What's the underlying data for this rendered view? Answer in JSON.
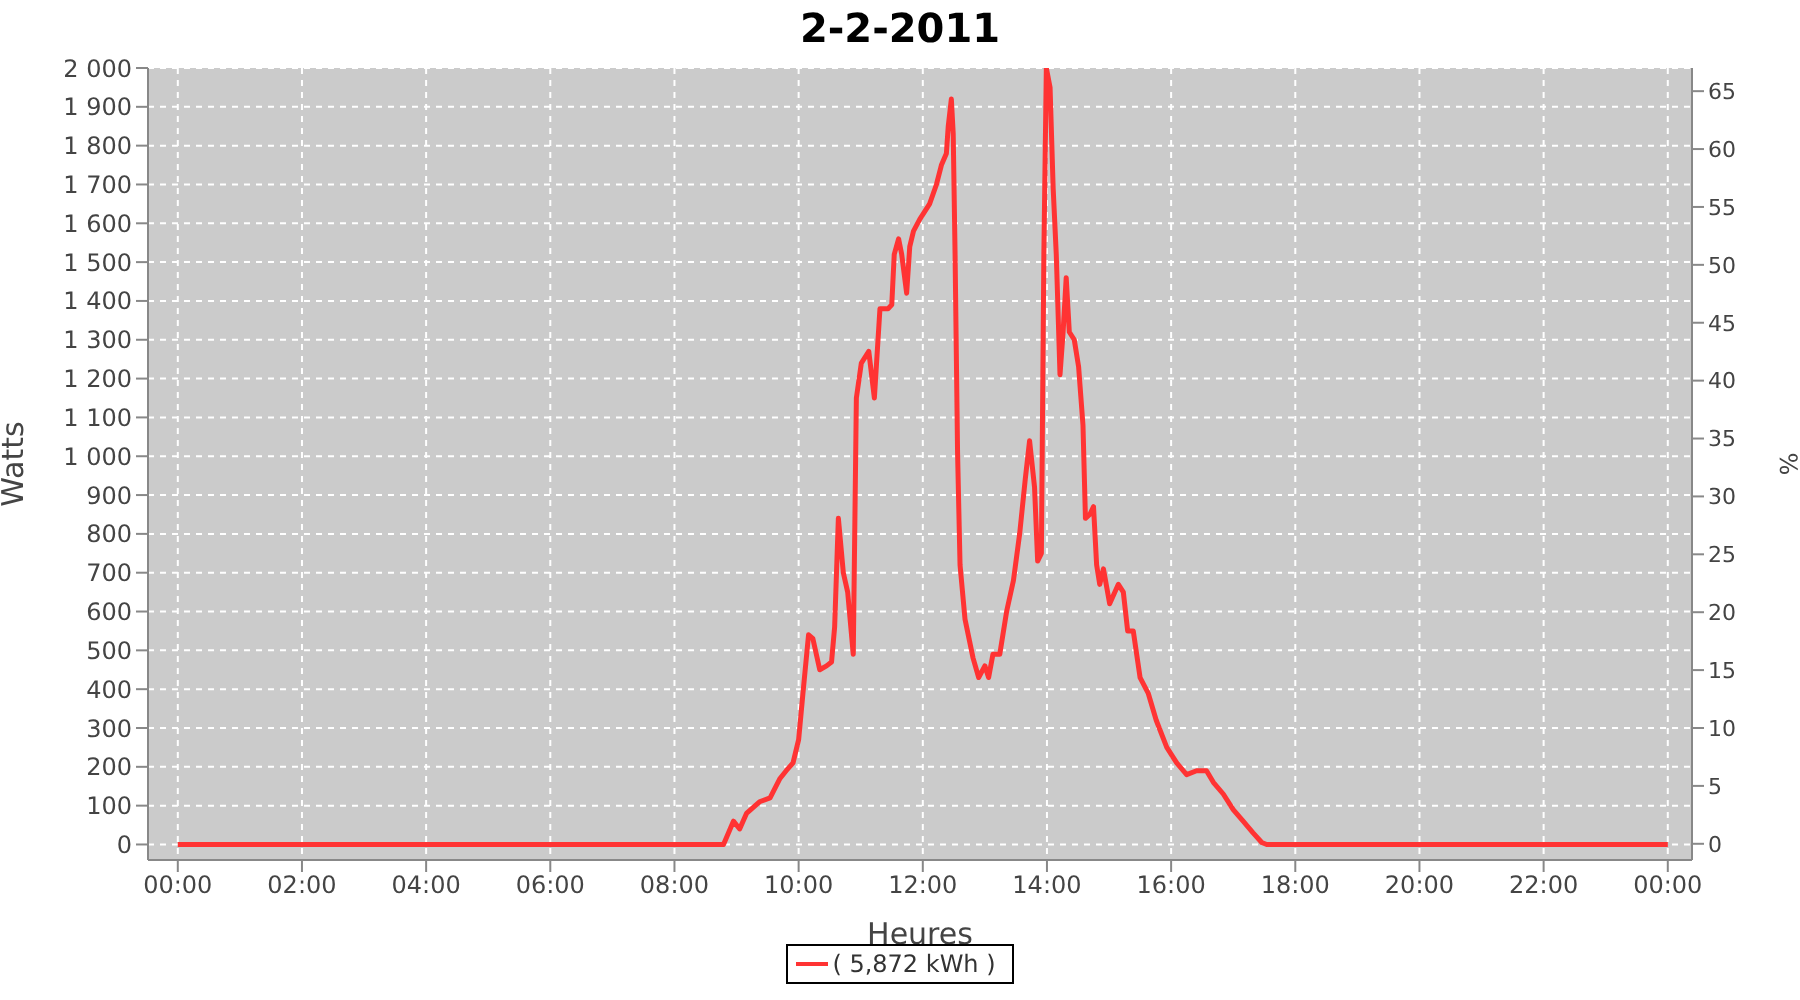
{
  "chart_data": {
    "type": "line",
    "title": "2-2-2011",
    "xlabel": "Heures",
    "ylabel": "Watts",
    "y2label": "%",
    "xlim": [
      -0.48,
      24.39
    ],
    "xticks": [
      {
        "value": 0,
        "label": "00:00"
      },
      {
        "value": 2,
        "label": "02:00"
      },
      {
        "value": 4,
        "label": "04:00"
      },
      {
        "value": 6,
        "label": "06:00"
      },
      {
        "value": 8,
        "label": "08:00"
      },
      {
        "value": 10,
        "label": "10:00"
      },
      {
        "value": 12,
        "label": "12:00"
      },
      {
        "value": 14,
        "label": "14:00"
      },
      {
        "value": 16,
        "label": "16:00"
      },
      {
        "value": 18,
        "label": "18:00"
      },
      {
        "value": 20,
        "label": "20:00"
      },
      {
        "value": 22,
        "label": "22:00"
      },
      {
        "value": 24,
        "label": "00:00"
      }
    ],
    "ylim": [
      -40,
      2000
    ],
    "yticks": [
      0,
      100,
      200,
      300,
      400,
      500,
      600,
      700,
      800,
      900,
      {
        "value": 1000,
        "label": "1 000"
      },
      {
        "value": 1100,
        "label": "1 100"
      },
      {
        "value": 1200,
        "label": "1 200"
      },
      {
        "value": 1300,
        "label": "1 300"
      },
      {
        "value": 1400,
        "label": "1 400"
      },
      {
        "value": 1500,
        "label": "1 500"
      },
      {
        "value": 1600,
        "label": "1 600"
      },
      {
        "value": 1700,
        "label": "1 700"
      },
      {
        "value": 1800,
        "label": "1 800"
      },
      {
        "value": 1900,
        "label": "1 900"
      },
      {
        "value": 2000,
        "label": "2 000"
      }
    ],
    "y2lim": [
      -1.4,
      67
    ],
    "y2ticks": [
      0,
      5,
      10,
      15,
      20,
      25,
      30,
      35,
      40,
      45,
      50,
      55,
      60,
      65
    ],
    "grid": true,
    "legend": "bottom",
    "marker": "none",
    "line_style": "solid",
    "series": [
      {
        "name": "( 5,872 kWh )",
        "color": "#ff3333",
        "x": [
          0,
          8.79,
          8.95,
          9.05,
          9.16,
          9.37,
          9.54,
          9.7,
          9.8,
          9.91,
          10.0,
          10.07,
          10.16,
          10.23,
          10.34,
          10.45,
          10.53,
          10.58,
          10.64,
          10.72,
          10.79,
          10.88,
          10.93,
          11.01,
          11.13,
          11.22,
          11.31,
          11.44,
          11.5,
          11.54,
          11.61,
          11.66,
          11.74,
          11.79,
          11.85,
          11.95,
          12.11,
          12.22,
          12.3,
          12.38,
          12.41,
          12.46,
          12.49,
          12.52,
          12.56,
          12.6,
          12.68,
          12.81,
          12.9,
          13.0,
          13.06,
          13.13,
          13.24,
          13.35,
          13.46,
          13.56,
          13.65,
          13.72,
          13.8,
          13.85,
          13.91,
          13.95,
          13.99,
          14.05,
          14.1,
          14.15,
          14.21,
          14.26,
          14.31,
          14.36,
          14.44,
          14.51,
          14.58,
          14.62,
          14.69,
          14.75,
          14.8,
          14.85,
          14.91,
          15.01,
          15.15,
          15.23,
          15.3,
          15.39,
          15.5,
          15.63,
          15.76,
          15.93,
          16.09,
          16.25,
          16.41,
          16.57,
          16.68,
          16.84,
          17.0,
          17.16,
          17.32,
          17.46,
          17.54,
          24
        ],
        "values": [
          0,
          0,
          60,
          40,
          80,
          110,
          120,
          170,
          190,
          210,
          270,
          390,
          540,
          530,
          450,
          460,
          470,
          560,
          840,
          700,
          650,
          490,
          1150,
          1240,
          1270,
          1150,
          1380,
          1380,
          1390,
          1520,
          1560,
          1520,
          1420,
          1540,
          1580,
          1610,
          1650,
          1700,
          1750,
          1780,
          1850,
          1920,
          1830,
          1520,
          1010,
          720,
          580,
          480,
          430,
          460,
          430,
          490,
          490,
          600,
          680,
          800,
          940,
          1040,
          920,
          730,
          750,
          1520,
          2000,
          1950,
          1690,
          1520,
          1210,
          1320,
          1460,
          1320,
          1300,
          1230,
          1080,
          840,
          850,
          870,
          720,
          670,
          710,
          620,
          670,
          650,
          550,
          550,
          430,
          390,
          320,
          250,
          210,
          180,
          190,
          190,
          160,
          130,
          90,
          60,
          30,
          5,
          0,
          0
        ]
      }
    ]
  }
}
